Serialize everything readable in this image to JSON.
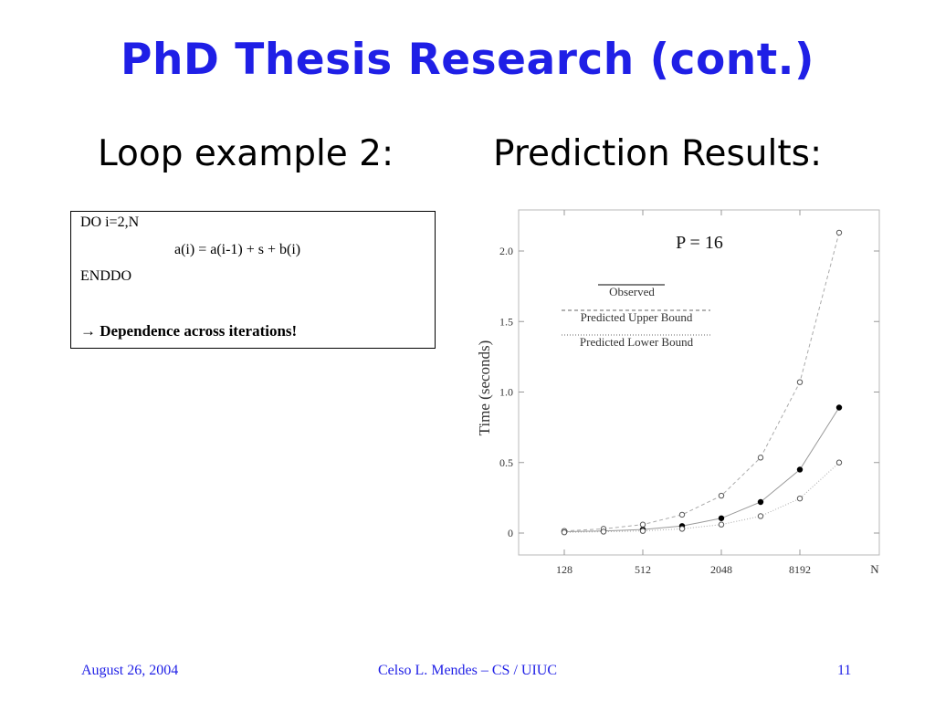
{
  "slide": {
    "title": "PhD Thesis Research (cont.)",
    "left_heading": "Loop example 2:",
    "right_heading": "Prediction Results:"
  },
  "code": {
    "lines": [
      "DO i=2,N",
      "a(i) =  a(i-1) + s + b(i)",
      "ENDDO"
    ],
    "note_arrow": "→",
    "note": " Dependence across iterations!"
  },
  "footer": {
    "date": "August 26, 2004",
    "author": "Celso L. Mendes – CS / UIUC",
    "page": "11"
  },
  "chart_data": {
    "type": "line",
    "title": "P = 16",
    "xlabel": "N",
    "ylabel": "Time  (seconds)",
    "x_scale": "log2",
    "x": [
      128,
      256,
      512,
      1024,
      2048,
      4096,
      8192,
      16384
    ],
    "x_tick_labels": [
      "128",
      "512",
      "2048",
      "8192"
    ],
    "x_tick_values": [
      128,
      512,
      2048,
      8192
    ],
    "y_tick_labels": [
      "0",
      "0.5",
      "1.0",
      "1.5",
      "2.0"
    ],
    "y_tick_values": [
      0,
      0.5,
      1.0,
      1.5,
      2.0
    ],
    "ylim": [
      -0.15,
      2.3
    ],
    "grid": false,
    "legend_position": "top-left",
    "series": [
      {
        "name": "Observed",
        "style": "solid",
        "marker": "filled",
        "color": "#000000",
        "values": [
          0.01,
          0.015,
          0.025,
          0.05,
          0.105,
          0.22,
          0.45,
          0.89
        ]
      },
      {
        "name": "Predicted Upper Bound",
        "style": "dashed",
        "marker": "open",
        "color": "#666666",
        "values": [
          0.015,
          0.03,
          0.06,
          0.13,
          0.265,
          0.535,
          1.07,
          2.13
        ]
      },
      {
        "name": "Predicted Lower Bound",
        "style": "dotted",
        "marker": "open",
        "color": "#666666",
        "values": [
          0.005,
          0.01,
          0.015,
          0.03,
          0.06,
          0.12,
          0.245,
          0.5
        ]
      }
    ]
  }
}
